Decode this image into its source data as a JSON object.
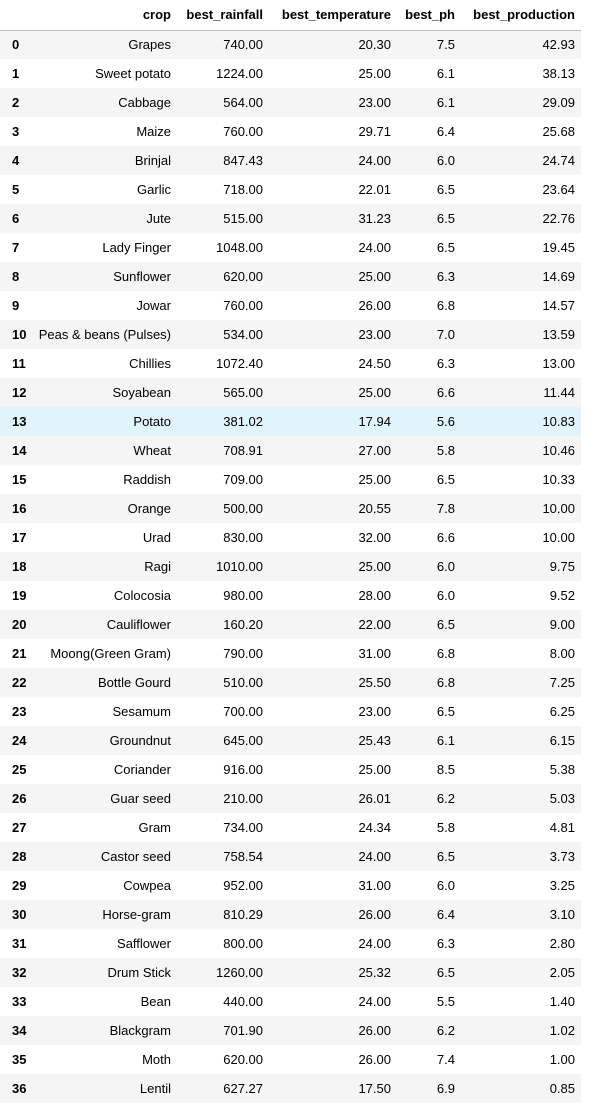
{
  "table": {
    "columns": [
      "",
      "crop",
      "best_rainfall",
      "best_temperature",
      "best_ph",
      "best_production"
    ],
    "highlighted_row": 13,
    "rows": [
      [
        "0",
        "Grapes",
        "740.00",
        "20.30",
        "7.5",
        "42.93"
      ],
      [
        "1",
        "Sweet potato",
        "1224.00",
        "25.00",
        "6.1",
        "38.13"
      ],
      [
        "2",
        "Cabbage",
        "564.00",
        "23.00",
        "6.1",
        "29.09"
      ],
      [
        "3",
        "Maize",
        "760.00",
        "29.71",
        "6.4",
        "25.68"
      ],
      [
        "4",
        "Brinjal",
        "847.43",
        "24.00",
        "6.0",
        "24.74"
      ],
      [
        "5",
        "Garlic",
        "718.00",
        "22.01",
        "6.5",
        "23.64"
      ],
      [
        "6",
        "Jute",
        "515.00",
        "31.23",
        "6.5",
        "22.76"
      ],
      [
        "7",
        "Lady Finger",
        "1048.00",
        "24.00",
        "6.5",
        "19.45"
      ],
      [
        "8",
        "Sunflower",
        "620.00",
        "25.00",
        "6.3",
        "14.69"
      ],
      [
        "9",
        "Jowar",
        "760.00",
        "26.00",
        "6.8",
        "14.57"
      ],
      [
        "10",
        "Peas & beans (Pulses)",
        "534.00",
        "23.00",
        "7.0",
        "13.59"
      ],
      [
        "11",
        "Chillies",
        "1072.40",
        "24.50",
        "6.3",
        "13.00"
      ],
      [
        "12",
        "Soyabean",
        "565.00",
        "25.00",
        "6.6",
        "11.44"
      ],
      [
        "13",
        "Potato",
        "381.02",
        "17.94",
        "5.6",
        "10.83"
      ],
      [
        "14",
        "Wheat",
        "708.91",
        "27.00",
        "5.8",
        "10.46"
      ],
      [
        "15",
        "Raddish",
        "709.00",
        "25.00",
        "6.5",
        "10.33"
      ],
      [
        "16",
        "Orange",
        "500.00",
        "20.55",
        "7.8",
        "10.00"
      ],
      [
        "17",
        "Urad",
        "830.00",
        "32.00",
        "6.6",
        "10.00"
      ],
      [
        "18",
        "Ragi",
        "1010.00",
        "25.00",
        "6.0",
        "9.75"
      ],
      [
        "19",
        "Colocosia",
        "980.00",
        "28.00",
        "6.0",
        "9.52"
      ],
      [
        "20",
        "Cauliflower",
        "160.20",
        "22.00",
        "6.5",
        "9.00"
      ],
      [
        "21",
        "Moong(Green Gram)",
        "790.00",
        "31.00",
        "6.8",
        "8.00"
      ],
      [
        "22",
        "Bottle Gourd",
        "510.00",
        "25.50",
        "6.8",
        "7.25"
      ],
      [
        "23",
        "Sesamum",
        "700.00",
        "23.00",
        "6.5",
        "6.25"
      ],
      [
        "24",
        "Groundnut",
        "645.00",
        "25.43",
        "6.1",
        "6.15"
      ],
      [
        "25",
        "Coriander",
        "916.00",
        "25.00",
        "8.5",
        "5.38"
      ],
      [
        "26",
        "Guar seed",
        "210.00",
        "26.01",
        "6.2",
        "5.03"
      ],
      [
        "27",
        "Gram",
        "734.00",
        "24.34",
        "5.8",
        "4.81"
      ],
      [
        "28",
        "Castor seed",
        "758.54",
        "24.00",
        "6.5",
        "3.73"
      ],
      [
        "29",
        "Cowpea",
        "952.00",
        "31.00",
        "6.0",
        "3.25"
      ],
      [
        "30",
        "Horse-gram",
        "810.29",
        "26.00",
        "6.4",
        "3.10"
      ],
      [
        "31",
        "Safflower",
        "800.00",
        "24.00",
        "6.3",
        "2.80"
      ],
      [
        "32",
        "Drum Stick",
        "1260.00",
        "25.32",
        "6.5",
        "2.05"
      ],
      [
        "33",
        "Bean",
        "440.00",
        "24.00",
        "5.5",
        "1.40"
      ],
      [
        "34",
        "Blackgram",
        "701.90",
        "26.00",
        "6.2",
        "1.02"
      ],
      [
        "35",
        "Moth",
        "620.00",
        "26.00",
        "7.4",
        "1.00"
      ],
      [
        "36",
        "Lentil",
        "627.27",
        "17.50",
        "6.9",
        "0.85"
      ]
    ]
  }
}
